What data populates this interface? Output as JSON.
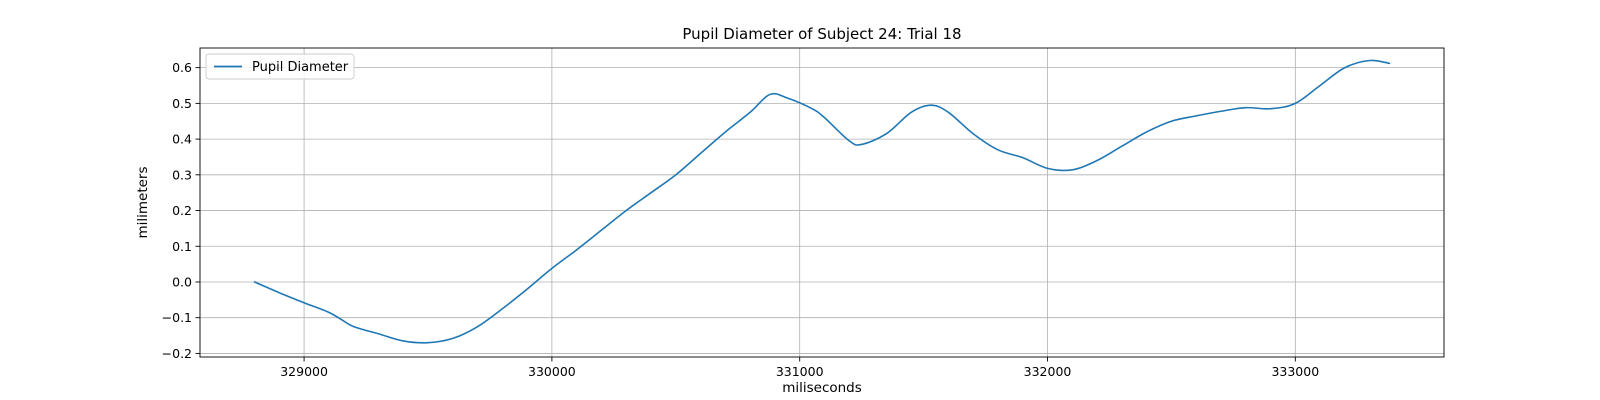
{
  "chart_data": {
    "type": "line",
    "title": "Pupil Diameter of Subject 24: Trial 18",
    "xlabel": "miliseconds",
    "ylabel": "milimeters",
    "xlim": [
      328580,
      333600
    ],
    "ylim": [
      -0.21,
      0.655
    ],
    "xticks": [
      329000,
      330000,
      331000,
      332000,
      333000
    ],
    "yticks": [
      -0.2,
      -0.1,
      0.0,
      0.1,
      0.2,
      0.3,
      0.4,
      0.5,
      0.6
    ],
    "xtick_labels": [
      "329000",
      "330000",
      "331000",
      "332000",
      "333000"
    ],
    "ytick_labels": [
      "−0.2",
      "−0.1",
      "0.0",
      "0.1",
      "0.2",
      "0.3",
      "0.4",
      "0.5",
      "0.6"
    ],
    "grid": true,
    "legend_position": "top-left",
    "series": [
      {
        "name": "Pupil Diameter",
        "color": "#1f77b4",
        "points": [
          [
            328800,
            0.0
          ],
          [
            328900,
            -0.03
          ],
          [
            329000,
            -0.058
          ],
          [
            329100,
            -0.085
          ],
          [
            329150,
            -0.105
          ],
          [
            329200,
            -0.125
          ],
          [
            329300,
            -0.145
          ],
          [
            329400,
            -0.165
          ],
          [
            329500,
            -0.17
          ],
          [
            329600,
            -0.158
          ],
          [
            329700,
            -0.125
          ],
          [
            329800,
            -0.075
          ],
          [
            329900,
            -0.02
          ],
          [
            330000,
            0.038
          ],
          [
            330100,
            0.09
          ],
          [
            330200,
            0.145
          ],
          [
            330300,
            0.2
          ],
          [
            330400,
            0.25
          ],
          [
            330500,
            0.3
          ],
          [
            330600,
            0.36
          ],
          [
            330700,
            0.42
          ],
          [
            330800,
            0.475
          ],
          [
            330880,
            0.525
          ],
          [
            330950,
            0.515
          ],
          [
            331050,
            0.485
          ],
          [
            331100,
            0.46
          ],
          [
            331200,
            0.395
          ],
          [
            331250,
            0.385
          ],
          [
            331350,
            0.415
          ],
          [
            331450,
            0.475
          ],
          [
            331530,
            0.495
          ],
          [
            331600,
            0.475
          ],
          [
            331700,
            0.415
          ],
          [
            331800,
            0.37
          ],
          [
            331900,
            0.348
          ],
          [
            332000,
            0.318
          ],
          [
            332100,
            0.314
          ],
          [
            332200,
            0.34
          ],
          [
            332300,
            0.38
          ],
          [
            332400,
            0.42
          ],
          [
            332500,
            0.45
          ],
          [
            332600,
            0.465
          ],
          [
            332700,
            0.478
          ],
          [
            332800,
            0.488
          ],
          [
            332900,
            0.485
          ],
          [
            333000,
            0.5
          ],
          [
            333100,
            0.55
          ],
          [
            333200,
            0.6
          ],
          [
            333300,
            0.62
          ],
          [
            333380,
            0.612
          ]
        ]
      }
    ]
  }
}
